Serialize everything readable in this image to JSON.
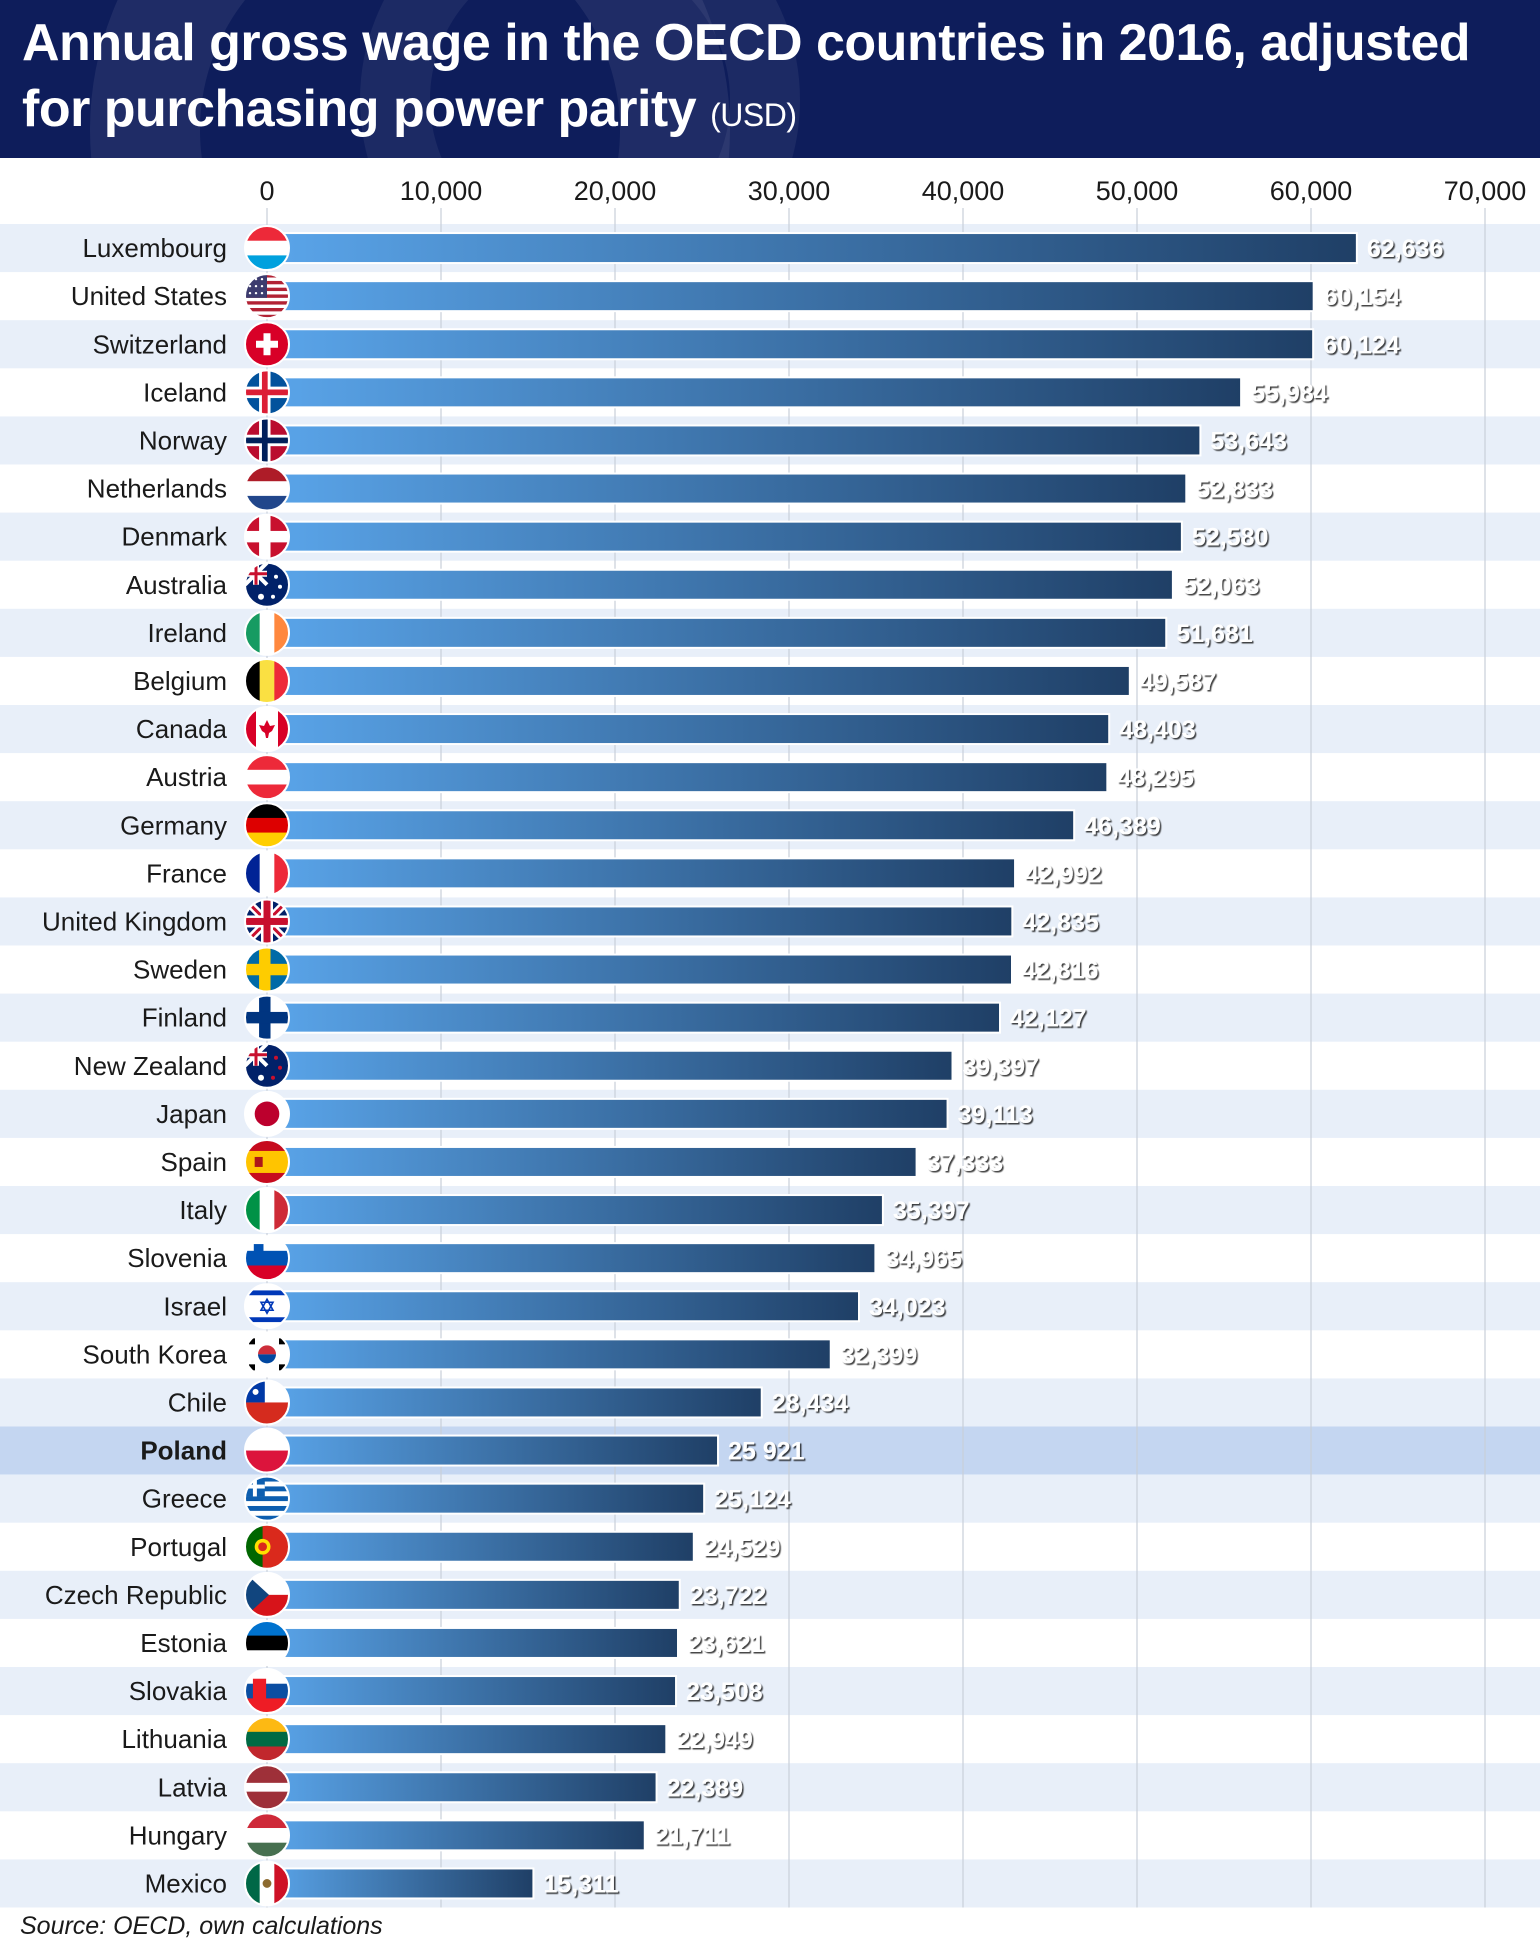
{
  "header": {
    "title": "Annual gross wage in the OECD countries in 2016, adjusted for purchasing power parity",
    "unit": "(USD)"
  },
  "source": "Source: OECD, own calculations",
  "colors": {
    "header_bg": "#0e1d5b",
    "bar_start": "#5aa5ea",
    "bar_end": "#1f3f66",
    "row_stripe": "#e8eff9",
    "highlight_row": "#c4d6f1"
  },
  "chart_data": {
    "type": "bar",
    "orientation": "horizontal",
    "xlim": [
      0,
      70000
    ],
    "xticks": [
      "0",
      "10,000",
      "20,000",
      "30,000",
      "40,000",
      "50,000",
      "60,000",
      "70,000"
    ],
    "xtick_values": [
      0,
      10000,
      20000,
      30000,
      40000,
      50000,
      60000,
      70000
    ],
    "grid": true,
    "highlight": "Poland",
    "categories": [
      "Luxembourg",
      "United States",
      "Switzerland",
      "Iceland",
      "Norway",
      "Netherlands",
      "Denmark",
      "Australia",
      "Ireland",
      "Belgium",
      "Canada",
      "Austria",
      "Germany",
      "France",
      "United Kingdom",
      "Sweden",
      "Finland",
      "New Zealand",
      "Japan",
      "Spain",
      "Italy",
      "Slovenia",
      "Israel",
      "South Korea",
      "Chile",
      "Poland",
      "Greece",
      "Portugal",
      "Czech Republic",
      "Estonia",
      "Slovakia",
      "Lithuania",
      "Latvia",
      "Hungary",
      "Mexico"
    ],
    "values": [
      62636,
      60154,
      60124,
      55984,
      53643,
      52833,
      52580,
      52063,
      51681,
      49587,
      48403,
      48295,
      46389,
      42992,
      42835,
      42816,
      42127,
      39397,
      39113,
      37333,
      35397,
      34965,
      34023,
      32399,
      28434,
      25921,
      25124,
      24529,
      23722,
      23621,
      23508,
      22949,
      22389,
      21711,
      15311
    ],
    "value_labels": [
      "62,636",
      "60,154",
      "60,124",
      "55,984",
      "53,643",
      "52,833",
      "52,580",
      "52,063",
      "51,681",
      "49,587",
      "48,403",
      "48,295",
      "46,389",
      "42,992",
      "42,835",
      "42,816",
      "42,127",
      "39,397",
      "39,113",
      "37,333",
      "35,397",
      "34,965",
      "34,023",
      "32,399",
      "28,434",
      "25 921",
      "25,124",
      "24,529",
      "23,722",
      "23,621",
      "23,508",
      "22,949",
      "22,389",
      "21,711",
      "15,311"
    ],
    "flag_icons": [
      "flag-luxembourg-icon",
      "flag-united-states-icon",
      "flag-switzerland-icon",
      "flag-iceland-icon",
      "flag-norway-icon",
      "flag-netherlands-icon",
      "flag-denmark-icon",
      "flag-australia-icon",
      "flag-ireland-icon",
      "flag-belgium-icon",
      "flag-canada-icon",
      "flag-austria-icon",
      "flag-germany-icon",
      "flag-france-icon",
      "flag-united-kingdom-icon",
      "flag-sweden-icon",
      "flag-finland-icon",
      "flag-new-zealand-icon",
      "flag-japan-icon",
      "flag-spain-icon",
      "flag-italy-icon",
      "flag-slovenia-icon",
      "flag-israel-icon",
      "flag-south-korea-icon",
      "flag-chile-icon",
      "flag-poland-icon",
      "flag-greece-icon",
      "flag-portugal-icon",
      "flag-czech-republic-icon",
      "flag-estonia-icon",
      "flag-slovakia-icon",
      "flag-lithuania-icon",
      "flag-latvia-icon",
      "flag-hungary-icon",
      "flag-mexico-icon"
    ]
  }
}
